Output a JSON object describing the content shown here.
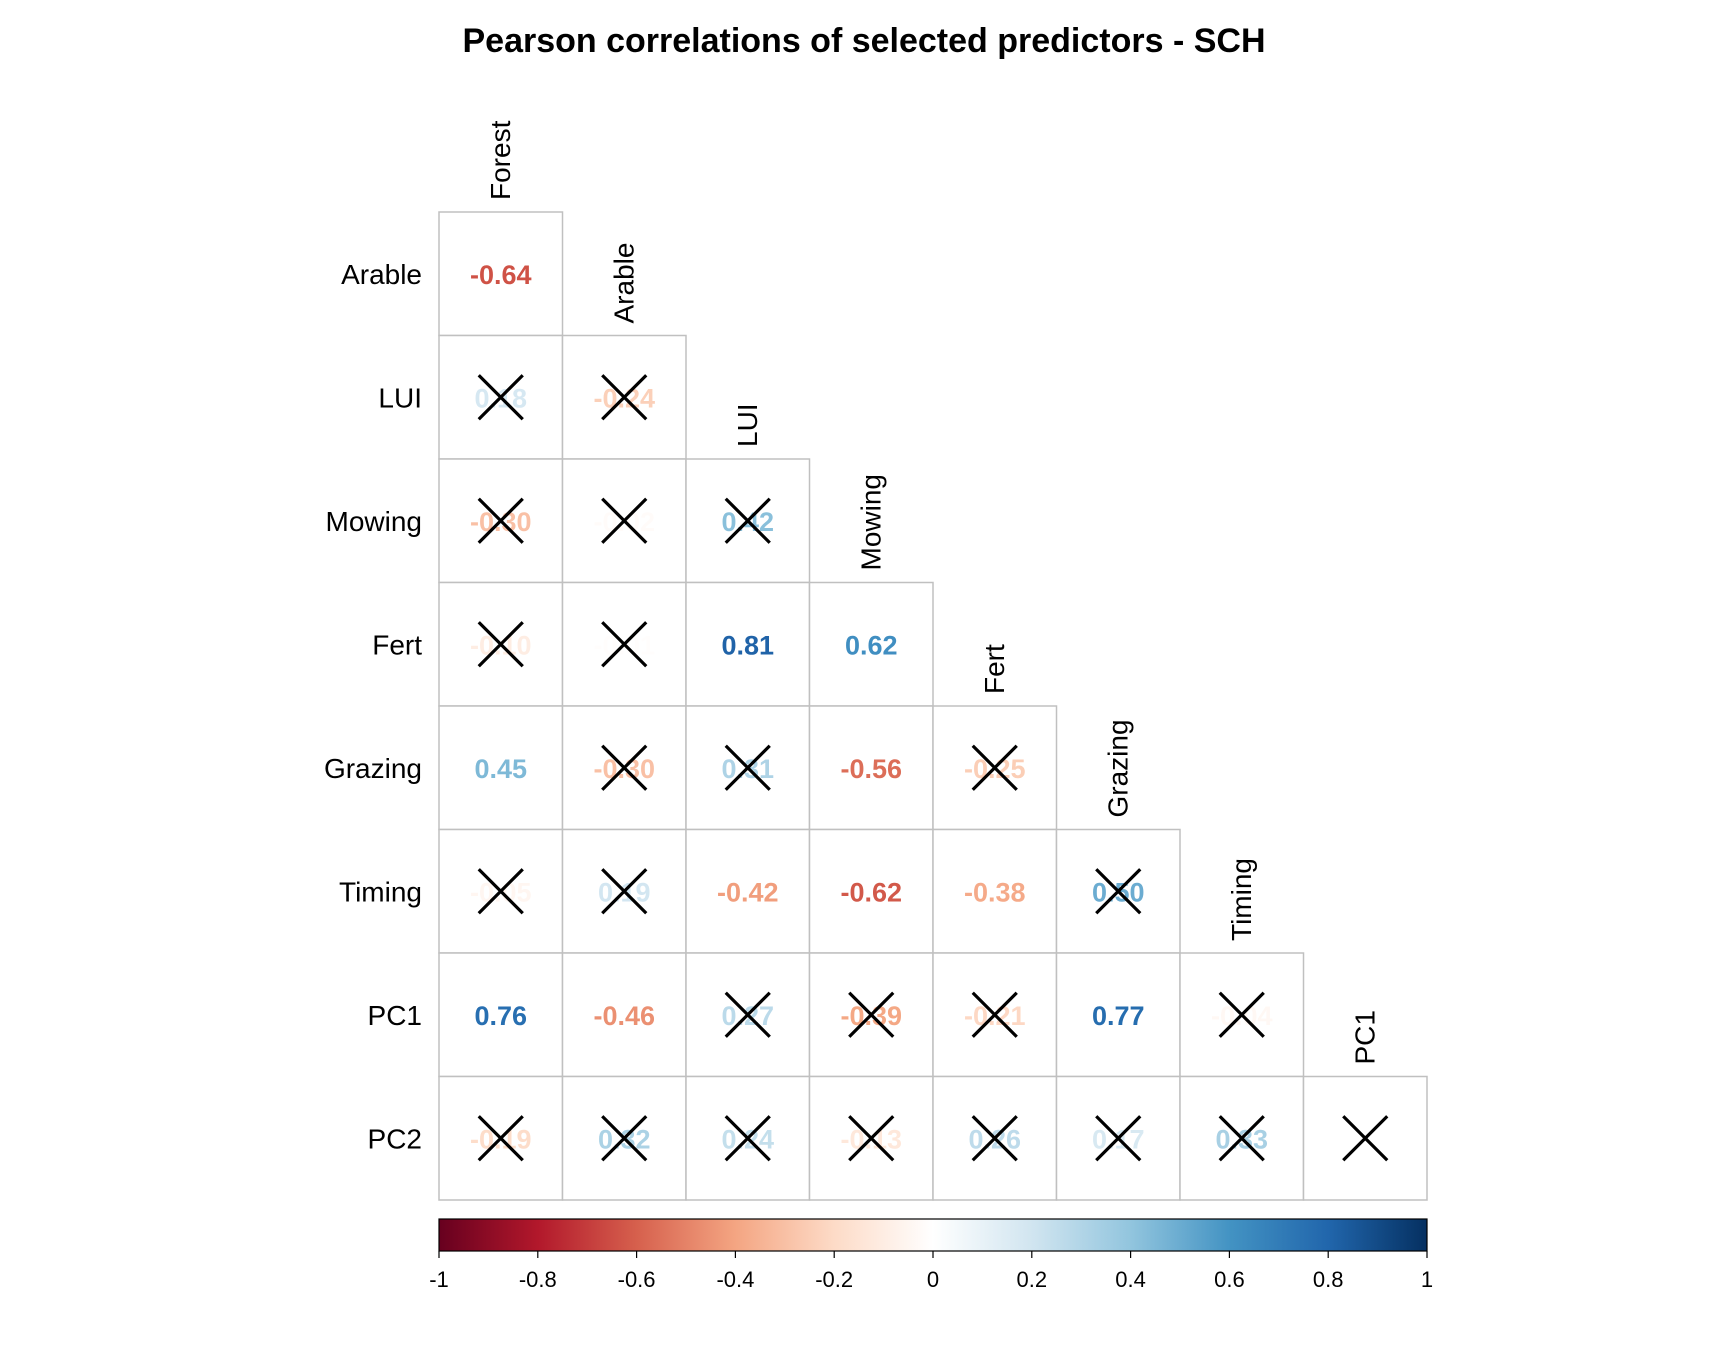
{
  "chart_data": {
    "type": "heatmap",
    "subtype": "correlation-lower-triangle",
    "title": "Pearson correlations of selected predictors - SCH",
    "row_labels": [
      "Arable",
      "LUI",
      "Mowing",
      "Fert",
      "Grazing",
      "Timing",
      "PC1",
      "PC2"
    ],
    "col_labels": [
      "Forest",
      "Arable",
      "LUI",
      "Mowing",
      "Fert",
      "Grazing",
      "Timing",
      "PC1"
    ],
    "cells": [
      [
        {
          "value": -0.64,
          "label": "-0.64",
          "crossed": false
        }
      ],
      [
        {
          "value": 0.18,
          "label": "0.18",
          "crossed": true
        },
        {
          "value": -0.24,
          "label": "-0.24",
          "crossed": true
        }
      ],
      [
        {
          "value": -0.3,
          "label": "-0.30",
          "crossed": true
        },
        {
          "value": -0.02,
          "label": "-0.02",
          "crossed": true
        },
        {
          "value": 0.42,
          "label": "0.42",
          "crossed": true
        }
      ],
      [
        {
          "value": -0.1,
          "label": "-0.10",
          "crossed": true
        },
        {
          "value": -0.01,
          "label": "-0.01",
          "crossed": true
        },
        {
          "value": 0.81,
          "label": "0.81",
          "crossed": false
        },
        {
          "value": 0.62,
          "label": "0.62",
          "crossed": false
        }
      ],
      [
        {
          "value": 0.45,
          "label": "0.45",
          "crossed": false
        },
        {
          "value": -0.3,
          "label": "-0.30",
          "crossed": true
        },
        {
          "value": 0.31,
          "label": "0.31",
          "crossed": true
        },
        {
          "value": -0.56,
          "label": "-0.56",
          "crossed": false
        },
        {
          "value": -0.25,
          "label": "-0.25",
          "crossed": true
        }
      ],
      [
        {
          "value": -0.05,
          "label": "-0.05",
          "crossed": true
        },
        {
          "value": 0.19,
          "label": "0.19",
          "crossed": true
        },
        {
          "value": -0.42,
          "label": "-0.42",
          "crossed": false
        },
        {
          "value": -0.62,
          "label": "-0.62",
          "crossed": false
        },
        {
          "value": -0.38,
          "label": "-0.38",
          "crossed": false
        },
        {
          "value": 0.5,
          "label": "0.50",
          "crossed": true
        }
      ],
      [
        {
          "value": 0.76,
          "label": "0.76",
          "crossed": false
        },
        {
          "value": -0.46,
          "label": "-0.46",
          "crossed": false
        },
        {
          "value": 0.27,
          "label": "0.27",
          "crossed": true
        },
        {
          "value": -0.39,
          "label": "-0.39",
          "crossed": true
        },
        {
          "value": -0.21,
          "label": "-0.21",
          "crossed": true
        },
        {
          "value": 0.77,
          "label": "0.77",
          "crossed": false
        },
        {
          "value": -0.04,
          "label": "-0.04",
          "crossed": true
        }
      ],
      [
        {
          "value": -0.19,
          "label": "-0.19",
          "crossed": true
        },
        {
          "value": 0.32,
          "label": "0.32",
          "crossed": true
        },
        {
          "value": 0.24,
          "label": "0.24",
          "crossed": true
        },
        {
          "value": -0.13,
          "label": "-0.13",
          "crossed": true
        },
        {
          "value": 0.26,
          "label": "0.26",
          "crossed": true
        },
        {
          "value": 0.17,
          "label": "0.17",
          "crossed": true
        },
        {
          "value": 0.33,
          "label": "0.33",
          "crossed": true
        },
        {
          "value": 0.0,
          "label": "",
          "crossed": true
        }
      ]
    ],
    "colorbar": {
      "range": [
        -1,
        1
      ],
      "ticks": [
        "-1",
        "-0.8",
        "-0.6",
        "-0.4",
        "-0.2",
        "0",
        "0.2",
        "0.4",
        "0.6",
        "0.8",
        "1"
      ],
      "stops": [
        "#67001f",
        "#b2182b",
        "#d6604d",
        "#f4a582",
        "#fddbc7",
        "#ffffff",
        "#d1e5f0",
        "#92c5de",
        "#4393c3",
        "#2166ac",
        "#053061"
      ]
    },
    "grid_color": "#c0c0c0"
  }
}
